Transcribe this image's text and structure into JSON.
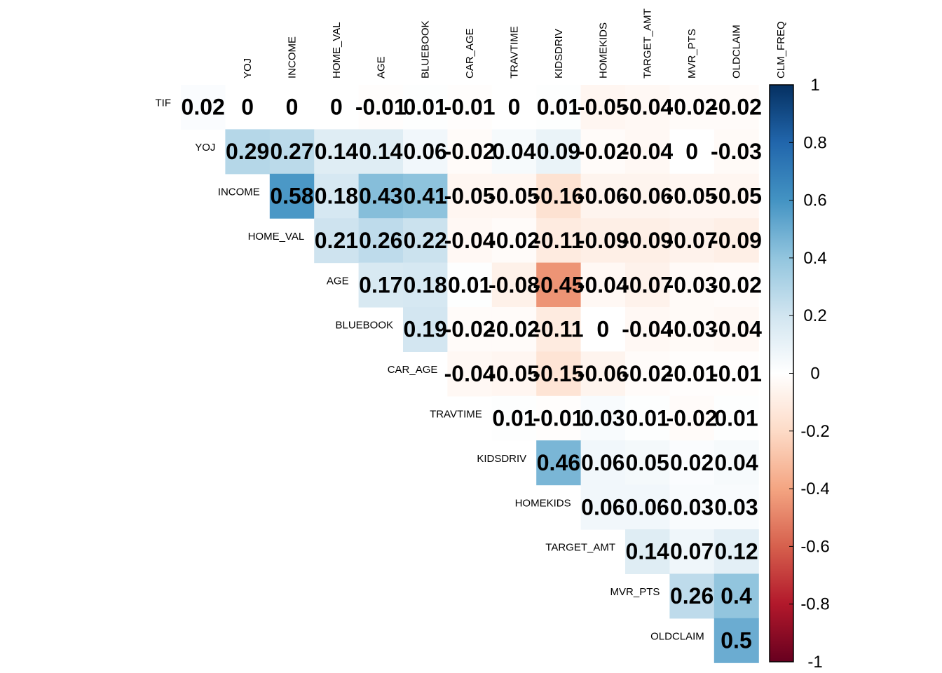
{
  "chart_data": {
    "type": "heatmap",
    "title": "",
    "column_labels": [
      "YOJ",
      "INCOME",
      "HOME_VAL",
      "AGE",
      "BLUEBOOK",
      "CAR_AGE",
      "TRAVTIME",
      "KIDSDRIV",
      "HOMEKIDS",
      "TARGET_AMT",
      "MVR_PTS",
      "OLDCLAIM",
      "CLM_FREQ"
    ],
    "row_labels": [
      "TIF",
      "YOJ",
      "INCOME",
      "HOME_VAL",
      "AGE",
      "BLUEBOOK",
      "CAR_AGE",
      "TRAVTIME",
      "KIDSDRIV",
      "HOMEKIDS",
      "TARGET_AMT",
      "MVR_PTS",
      "OLDCLAIM"
    ],
    "values": [
      [
        0.02,
        0,
        0,
        0,
        -0.01,
        0.01,
        -0.01,
        0,
        0.01,
        -0.05,
        -0.04,
        -0.02,
        -0.02
      ],
      [
        null,
        0.29,
        0.27,
        0.14,
        0.14,
        0.06,
        -0.02,
        0.04,
        0.09,
        -0.02,
        -0.04,
        0,
        -0.03
      ],
      [
        null,
        null,
        0.58,
        0.18,
        0.43,
        0.41,
        -0.05,
        -0.05,
        -0.16,
        -0.06,
        -0.06,
        -0.05,
        -0.05
      ],
      [
        null,
        null,
        null,
        0.21,
        0.26,
        0.22,
        -0.04,
        -0.02,
        -0.11,
        -0.09,
        -0.09,
        -0.07,
        -0.09
      ],
      [
        null,
        null,
        null,
        null,
        0.17,
        0.18,
        0.01,
        -0.08,
        -0.45,
        -0.04,
        -0.07,
        -0.03,
        -0.02
      ],
      [
        null,
        null,
        null,
        null,
        null,
        0.19,
        -0.02,
        -0.02,
        -0.11,
        0,
        -0.04,
        -0.03,
        -0.04
      ],
      [
        null,
        null,
        null,
        null,
        null,
        null,
        -0.04,
        -0.05,
        -0.15,
        -0.06,
        -0.02,
        -0.01,
        -0.01
      ],
      [
        null,
        null,
        null,
        null,
        null,
        null,
        null,
        0.01,
        -0.01,
        0.03,
        0.01,
        -0.02,
        0.01
      ],
      [
        null,
        null,
        null,
        null,
        null,
        null,
        null,
        null,
        0.46,
        0.06,
        0.05,
        0.02,
        0.04
      ],
      [
        null,
        null,
        null,
        null,
        null,
        null,
        null,
        null,
        null,
        0.06,
        0.06,
        0.03,
        0.03
      ],
      [
        null,
        null,
        null,
        null,
        null,
        null,
        null,
        null,
        null,
        null,
        0.14,
        0.07,
        0.12
      ],
      [
        null,
        null,
        null,
        null,
        null,
        null,
        null,
        null,
        null,
        null,
        null,
        0.26,
        0.4
      ],
      [
        null,
        null,
        null,
        null,
        null,
        null,
        null,
        null,
        null,
        null,
        null,
        null,
        0.5
      ]
    ],
    "colorbar": {
      "range": [
        -1,
        1
      ],
      "ticks": [
        "1",
        "0.8",
        "0.6",
        "0.4",
        "0.2",
        "0",
        "-0.2",
        "-0.4",
        "-0.6",
        "-0.8",
        "-1"
      ],
      "colors": [
        "#67001f",
        "#b2182b",
        "#d6604d",
        "#f4a582",
        "#fddbc7",
        "#ffffff",
        "#d1e5f0",
        "#92c5de",
        "#4393c3",
        "#2166ac",
        "#053061"
      ]
    },
    "layout": "upper-triangle"
  }
}
